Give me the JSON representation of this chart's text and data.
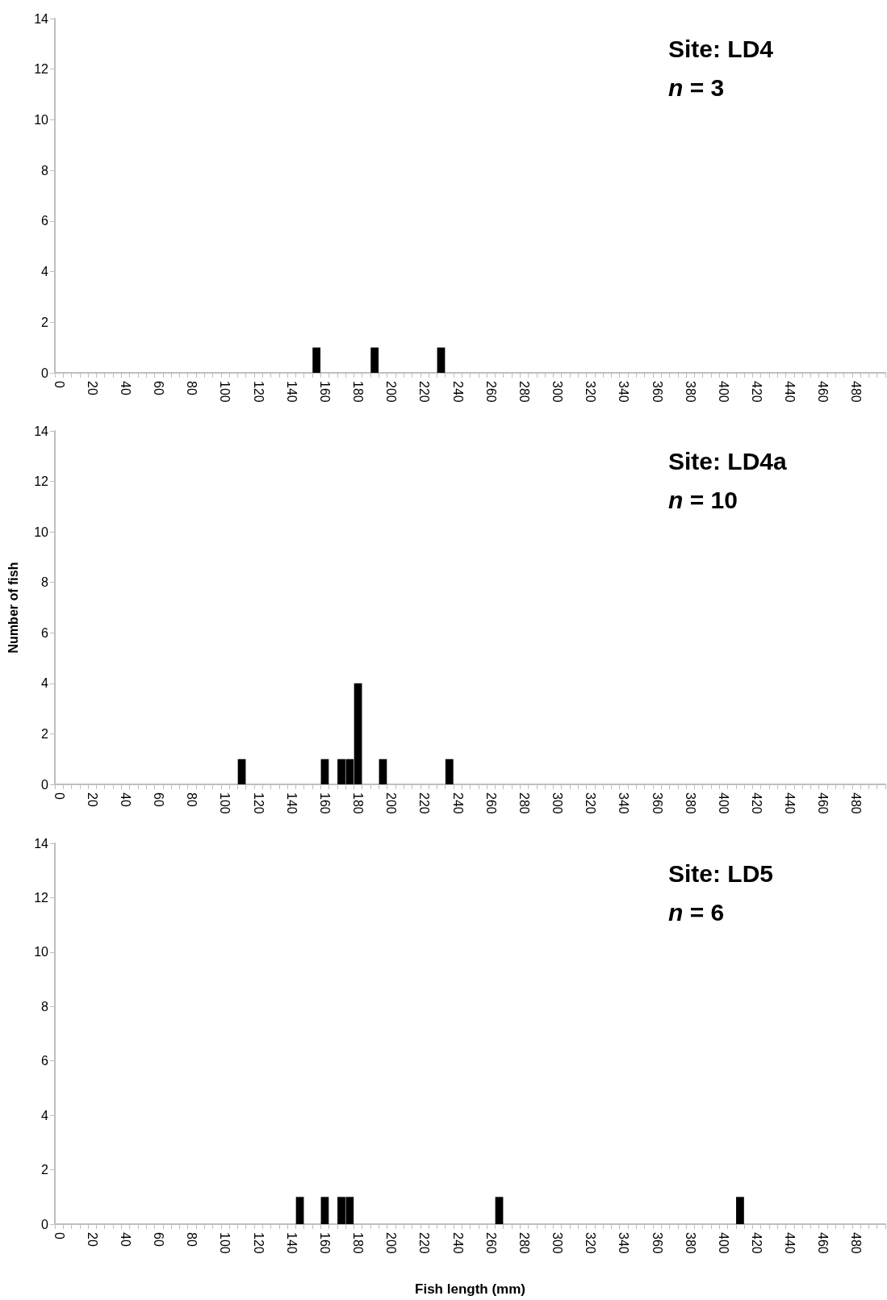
{
  "chart_data": [
    {
      "type": "bar",
      "annotations": [
        "Site: LD4",
        "n = 3"
      ],
      "color": "#000000",
      "categories": [
        "0",
        null,
        null,
        null,
        "20",
        null,
        null,
        null,
        "40",
        null,
        null,
        null,
        "60",
        null,
        null,
        null,
        "80",
        null,
        null,
        null,
        "100",
        null,
        null,
        null,
        "120",
        null,
        null,
        null,
        "140",
        null,
        null,
        null,
        "160",
        null,
        null,
        null,
        "180",
        null,
        null,
        null,
        "200",
        null,
        null,
        null,
        "220",
        null,
        null,
        null,
        "240",
        null,
        null,
        null,
        "260",
        null,
        null,
        null,
        "280",
        null,
        null,
        null,
        "300",
        null,
        null,
        null,
        "320",
        null,
        null,
        null,
        "340",
        null,
        null,
        null,
        "360",
        null,
        null,
        null,
        "380",
        null,
        null,
        null,
        "400",
        null,
        null,
        null,
        "420",
        null,
        null,
        null,
        "440",
        null,
        null,
        null,
        "460",
        null,
        null,
        null,
        "480",
        null,
        null,
        null
      ],
      "values": [
        0,
        0,
        0,
        0,
        0,
        0,
        0,
        0,
        0,
        0,
        0,
        0,
        0,
        0,
        0,
        0,
        0,
        0,
        0,
        0,
        0,
        0,
        0,
        0,
        0,
        0,
        0,
        0,
        0,
        0,
        0,
        1,
        0,
        0,
        0,
        0,
        0,
        0,
        1,
        0,
        0,
        0,
        0,
        0,
        0,
        0,
        1,
        0,
        0,
        0,
        0,
        0,
        0,
        0,
        0,
        0,
        0,
        0,
        0,
        0,
        0,
        0,
        0,
        0,
        0,
        0,
        0,
        0,
        0,
        0,
        0,
        0,
        0,
        0,
        0,
        0,
        0,
        0,
        0,
        0,
        0,
        0,
        0,
        0,
        0,
        0,
        0,
        0,
        0,
        0,
        0,
        0,
        0,
        0,
        0,
        0,
        0,
        0,
        0,
        0
      ],
      "ylim": [
        0,
        14
      ],
      "yticks": [
        0,
        2,
        4,
        6,
        8,
        10,
        12,
        14
      ]
    },
    {
      "type": "bar",
      "ylabel": "Number of fish",
      "annotations": [
        "Site: LD4a",
        "n = 10"
      ],
      "color": "#000000",
      "categories": [
        "0",
        null,
        null,
        null,
        "20",
        null,
        null,
        null,
        "40",
        null,
        null,
        null,
        "60",
        null,
        null,
        null,
        "80",
        null,
        null,
        null,
        "100",
        null,
        null,
        null,
        "120",
        null,
        null,
        null,
        "140",
        null,
        null,
        null,
        "160",
        null,
        null,
        null,
        "180",
        null,
        null,
        null,
        "200",
        null,
        null,
        null,
        "220",
        null,
        null,
        null,
        "240",
        null,
        null,
        null,
        "260",
        null,
        null,
        null,
        "280",
        null,
        null,
        null,
        "300",
        null,
        null,
        null,
        "320",
        null,
        null,
        null,
        "340",
        null,
        null,
        null,
        "360",
        null,
        null,
        null,
        "380",
        null,
        null,
        null,
        "400",
        null,
        null,
        null,
        "420",
        null,
        null,
        null,
        "440",
        null,
        null,
        null,
        "460",
        null,
        null,
        null,
        "480",
        null,
        null,
        null
      ],
      "values": [
        0,
        0,
        0,
        0,
        0,
        0,
        0,
        0,
        0,
        0,
        0,
        0,
        0,
        0,
        0,
        0,
        0,
        0,
        0,
        0,
        0,
        0,
        1,
        0,
        0,
        0,
        0,
        0,
        0,
        0,
        0,
        0,
        1,
        0,
        1,
        1,
        4,
        0,
        0,
        1,
        0,
        0,
        0,
        0,
        0,
        0,
        0,
        1,
        0,
        0,
        0,
        0,
        0,
        0,
        0,
        0,
        0,
        0,
        0,
        0,
        0,
        0,
        0,
        0,
        0,
        0,
        0,
        0,
        0,
        0,
        0,
        0,
        0,
        0,
        0,
        0,
        0,
        0,
        0,
        0,
        0,
        0,
        0,
        0,
        0,
        0,
        0,
        0,
        0,
        0,
        0,
        0,
        0,
        0,
        0,
        0,
        0,
        0,
        0,
        0
      ],
      "ylim": [
        0,
        14
      ],
      "yticks": [
        0,
        2,
        4,
        6,
        8,
        10,
        12,
        14
      ]
    },
    {
      "type": "bar",
      "xlabel": "Fish length (mm)",
      "annotations": [
        "Site: LD5",
        "n = 6"
      ],
      "color": "#000000",
      "categories": [
        "0",
        null,
        null,
        null,
        "20",
        null,
        null,
        null,
        "40",
        null,
        null,
        null,
        "60",
        null,
        null,
        null,
        "80",
        null,
        null,
        null,
        "100",
        null,
        null,
        null,
        "120",
        null,
        null,
        null,
        "140",
        null,
        null,
        null,
        "160",
        null,
        null,
        null,
        "180",
        null,
        null,
        null,
        "200",
        null,
        null,
        null,
        "220",
        null,
        null,
        null,
        "240",
        null,
        null,
        null,
        "260",
        null,
        null,
        null,
        "280",
        null,
        null,
        null,
        "300",
        null,
        null,
        null,
        "320",
        null,
        null,
        null,
        "340",
        null,
        null,
        null,
        "360",
        null,
        null,
        null,
        "380",
        null,
        null,
        null,
        "400",
        null,
        null,
        null,
        "420",
        null,
        null,
        null,
        "440",
        null,
        null,
        null,
        "460",
        null,
        null,
        null,
        "480",
        null,
        null,
        null
      ],
      "values": [
        0,
        0,
        0,
        0,
        0,
        0,
        0,
        0,
        0,
        0,
        0,
        0,
        0,
        0,
        0,
        0,
        0,
        0,
        0,
        0,
        0,
        0,
        0,
        0,
        0,
        0,
        0,
        0,
        0,
        1,
        0,
        0,
        1,
        0,
        1,
        1,
        0,
        0,
        0,
        0,
        0,
        0,
        0,
        0,
        0,
        0,
        0,
        0,
        0,
        0,
        0,
        0,
        0,
        1,
        0,
        0,
        0,
        0,
        0,
        0,
        0,
        0,
        0,
        0,
        0,
        0,
        0,
        0,
        0,
        0,
        0,
        0,
        0,
        0,
        0,
        0,
        0,
        0,
        0,
        0,
        0,
        0,
        1,
        0,
        0,
        0,
        0,
        0,
        0,
        0,
        0,
        0,
        0,
        0,
        0,
        0,
        0,
        0,
        0,
        0
      ],
      "ylim": [
        0,
        14
      ],
      "yticks": [
        0,
        2,
        4,
        6,
        8,
        10,
        12,
        14
      ]
    }
  ]
}
